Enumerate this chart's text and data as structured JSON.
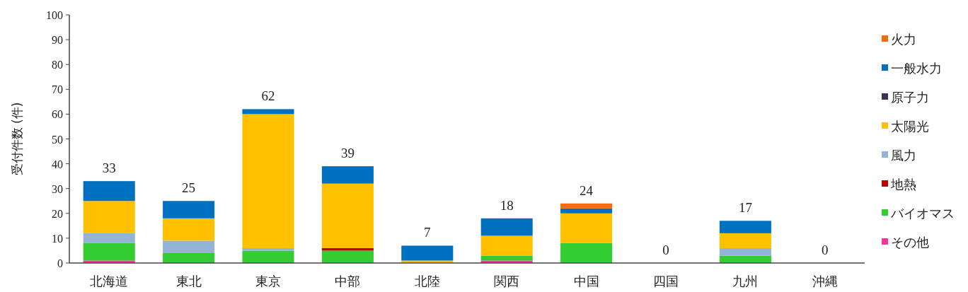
{
  "chart_data": {
    "type": "bar",
    "stacked": true,
    "ylabel": "受付件数 (件)",
    "categories": [
      "北海道",
      "東北",
      "東京",
      "中部",
      "北陸",
      "関西",
      "中国",
      "四国",
      "九州",
      "沖縄"
    ],
    "series": [
      {
        "name": "その他",
        "color": "#ff3399",
        "values": [
          1,
          0,
          0,
          0,
          0,
          1,
          0,
          0,
          0,
          0
        ]
      },
      {
        "name": "バイオマス",
        "color": "#33cc33",
        "values": [
          7,
          4,
          5,
          5,
          0,
          2,
          8,
          0,
          3,
          0
        ]
      },
      {
        "name": "地熱",
        "color": "#c00000",
        "values": [
          0,
          0,
          0,
          1,
          0,
          0,
          0,
          0,
          0,
          0
        ]
      },
      {
        "name": "風力",
        "color": "#95b3d7",
        "values": [
          4,
          5,
          1,
          0,
          0,
          0,
          0,
          0,
          3,
          0
        ]
      },
      {
        "name": "太陽光",
        "color": "#ffc000",
        "values": [
          13,
          9,
          54,
          26,
          1,
          8,
          12,
          0,
          6,
          0
        ]
      },
      {
        "name": "原子力",
        "color": "#403151",
        "values": [
          0,
          0,
          0,
          0,
          0,
          0,
          0,
          0,
          0,
          0
        ]
      },
      {
        "name": "一般水力",
        "color": "#0070c0",
        "values": [
          8,
          7,
          2,
          7,
          6,
          7,
          2,
          0,
          5,
          0
        ]
      },
      {
        "name": "火力",
        "color": "#f96b0f",
        "values": [
          0,
          0,
          0,
          0,
          0,
          0,
          2,
          0,
          0,
          0
        ]
      }
    ],
    "totals": [
      "33",
      "25",
      "62",
      "39",
      "7",
      "18",
      "24",
      "0",
      "17",
      "0"
    ],
    "ylim": [
      0,
      100
    ],
    "yticks": [
      0,
      10,
      20,
      30,
      40,
      50,
      60,
      70,
      80,
      90,
      100
    ],
    "legend": "right"
  }
}
